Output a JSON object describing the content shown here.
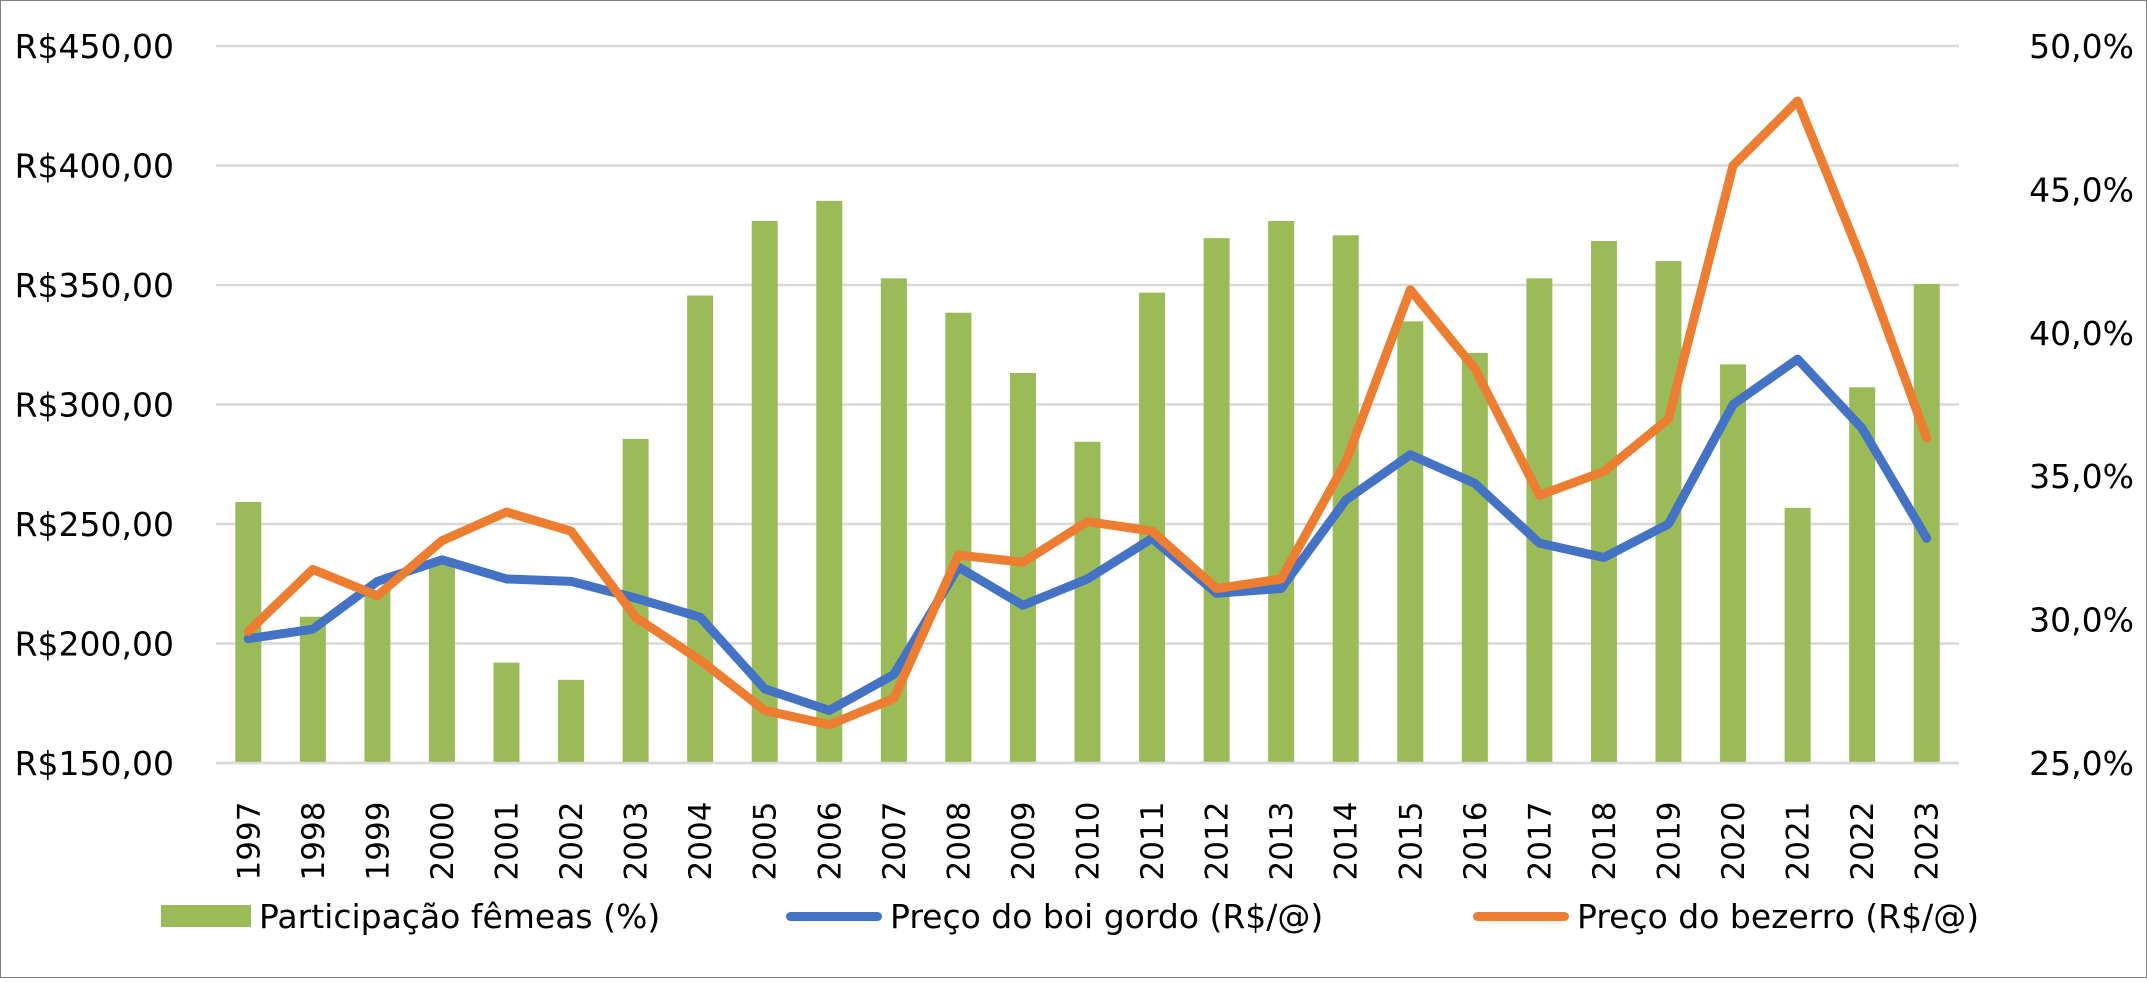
{
  "chart_data": {
    "type": "bar",
    "categories": [
      "1997",
      "1998",
      "1999",
      "2000",
      "2001",
      "2002",
      "2003",
      "2004",
      "2005",
      "2006",
      "2007",
      "2008",
      "2009",
      "2010",
      "2011",
      "2012",
      "2013",
      "2014",
      "2015",
      "2016",
      "2017",
      "2018",
      "2019",
      "2020",
      "2021",
      "2022",
      "2023"
    ],
    "y_left": {
      "ylim": [
        150,
        450
      ],
      "ticks": [
        150,
        200,
        250,
        300,
        350,
        400,
        450
      ],
      "tick_labels": [
        "R$150,00",
        "R$200,00",
        "R$250,00",
        "R$300,00",
        "R$350,00",
        "R$400,00",
        "R$450,00"
      ]
    },
    "y_right": {
      "ylim": [
        25,
        50
      ],
      "ticks": [
        25,
        30,
        35,
        40,
        45,
        50
      ],
      "tick_labels": [
        "25,0%",
        "30,0%",
        "35,0%",
        "40,0%",
        "45,0%",
        "50,0%"
      ]
    },
    "grid": true,
    "legend_position": "bottom",
    "series": [
      {
        "name": "Participação fêmeas (%)",
        "type": "bar",
        "axis": "right",
        "color": "#9bbb59",
        "values": [
          34.1,
          30.1,
          31.0,
          32.0,
          28.5,
          27.9,
          36.3,
          41.3,
          43.9,
          44.6,
          41.9,
          40.7,
          38.6,
          36.2,
          41.4,
          43.3,
          43.9,
          43.4,
          40.4,
          39.3,
          41.9,
          43.2,
          42.5,
          38.9,
          33.9,
          38.1,
          41.7
        ]
      },
      {
        "name": "Preço do boi gordo (R$/@)",
        "type": "line",
        "axis": "left",
        "color": "#4472c4",
        "values": [
          202,
          206,
          226,
          235,
          227,
          226,
          219,
          211,
          181,
          172,
          187,
          232,
          216,
          227,
          244,
          221,
          223,
          260,
          279,
          267,
          242,
          236,
          250,
          300,
          319,
          290,
          244
        ]
      },
      {
        "name": "Preço do bezerro (R$/@)",
        "type": "line",
        "axis": "left",
        "color": "#ed7d31",
        "values": [
          205,
          231,
          220,
          243,
          255,
          247,
          211,
          193,
          172,
          166,
          177,
          237,
          234,
          251,
          247,
          223,
          227,
          276,
          348,
          315,
          262,
          272,
          294,
          400,
          427,
          360,
          286
        ]
      }
    ]
  }
}
